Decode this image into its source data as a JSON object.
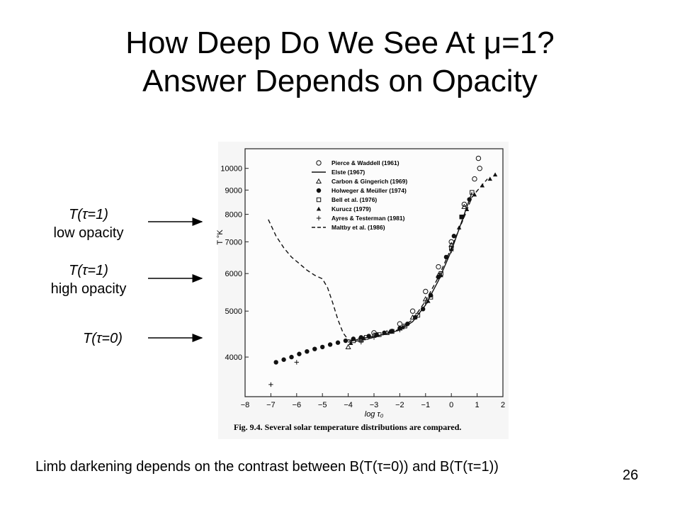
{
  "slide": {
    "title_line1": "How Deep Do We See At μ=1?",
    "title_line2": "Answer Depends on Opacity",
    "footer": "Limb darkening depends on the contrast between B(T(τ=0)) and B(T(τ=1))",
    "page_number": "26"
  },
  "labels": {
    "low_opacity_line1": "T(τ=1)",
    "low_opacity_line2": "low opacity",
    "high_opacity_line1": "T(τ=1)",
    "high_opacity_line2": "high opacity",
    "surface": "T(τ=0)"
  },
  "chart_data": {
    "type": "scatter",
    "caption": "Fig. 9.4. Several solar temperature distributions are compared.",
    "xlabel": "log τ₀",
    "ylabel": "T °K",
    "xlim": [
      -8,
      2
    ],
    "ylim": [
      3300,
      11000
    ],
    "y_scale": "log",
    "x_ticks": [
      "−8",
      "−7",
      "−6",
      "−5",
      "−4",
      "−3",
      "−2",
      "−1",
      "0",
      "1",
      "2"
    ],
    "y_ticks": [
      {
        "value": 10000,
        "label": "10000"
      },
      {
        "value": 9000,
        "label": "9000"
      },
      {
        "value": 8000,
        "label": "8000"
      },
      {
        "value": 7000,
        "label": "7000"
      },
      {
        "value": 6000,
        "label": "6000"
      },
      {
        "value": 5000,
        "label": "5000"
      },
      {
        "value": 4000,
        "label": "4000"
      }
    ],
    "legend_position": "top-right",
    "series": [
      {
        "name": "Pierce & Waddell (1961)",
        "marker": "circle-open",
        "points": [
          [
            -3.5,
            4380
          ],
          [
            -3,
            4500
          ],
          [
            -2,
            4700
          ],
          [
            -1.5,
            5000
          ],
          [
            -1,
            5500
          ],
          [
            -0.5,
            6200
          ],
          [
            0,
            7000
          ],
          [
            0.5,
            8400
          ],
          [
            0.9,
            9500
          ],
          [
            1.05,
            10500
          ],
          [
            1.1,
            10000
          ]
        ]
      },
      {
        "name": "Elste (1967)",
        "marker": "line-solid",
        "points": [
          [
            -4,
            4300
          ],
          [
            -3.5,
            4380
          ],
          [
            -3,
            4420
          ],
          [
            -2.5,
            4480
          ],
          [
            -2,
            4560
          ],
          [
            -1.5,
            4750
          ],
          [
            -1,
            5150
          ],
          [
            -0.5,
            5800
          ],
          [
            0,
            6700
          ],
          [
            0.5,
            8000
          ],
          [
            0.8,
            8900
          ]
        ]
      },
      {
        "name": "Carbon & Gingerich (1969)",
        "marker": "triangle-open",
        "points": [
          [
            -4,
            4200
          ],
          [
            -3.5,
            4350
          ],
          [
            -3,
            4450
          ],
          [
            -2.5,
            4500
          ],
          [
            -2,
            4600
          ],
          [
            -1.5,
            4850
          ],
          [
            -1,
            5300
          ],
          [
            -0.5,
            5950
          ],
          [
            0,
            6900
          ],
          [
            0.5,
            8300
          ]
        ]
      },
      {
        "name": "Holweger & Meüller (1974)",
        "marker": "circle-filled",
        "points": [
          [
            -6.8,
            3900
          ],
          [
            -6.5,
            3950
          ],
          [
            -6.2,
            4000
          ],
          [
            -5.9,
            4060
          ],
          [
            -5.6,
            4110
          ],
          [
            -5.3,
            4160
          ],
          [
            -5,
            4200
          ],
          [
            -4.7,
            4250
          ],
          [
            -4.4,
            4290
          ],
          [
            -4.1,
            4330
          ],
          [
            -3.8,
            4370
          ],
          [
            -3.5,
            4400
          ],
          [
            -3.2,
            4430
          ],
          [
            -2.9,
            4460
          ],
          [
            -2.6,
            4500
          ],
          [
            -2.3,
            4540
          ],
          [
            -2,
            4600
          ],
          [
            -1.7,
            4700
          ],
          [
            -1.4,
            4850
          ],
          [
            -1.1,
            5050
          ],
          [
            -0.8,
            5400
          ],
          [
            -0.5,
            5900
          ],
          [
            -0.2,
            6500
          ],
          [
            0.1,
            7200
          ],
          [
            0.4,
            7900
          ],
          [
            0.7,
            8600
          ]
        ]
      },
      {
        "name": "Bell et al. (1976)",
        "marker": "square-open",
        "points": [
          [
            -3.8,
            4330
          ],
          [
            -3.3,
            4400
          ],
          [
            -2.8,
            4460
          ],
          [
            -2.3,
            4530
          ],
          [
            -1.8,
            4650
          ],
          [
            -1.3,
            4900
          ],
          [
            -0.8,
            5350
          ],
          [
            -0.4,
            6000
          ],
          [
            0,
            6800
          ],
          [
            0.4,
            7900
          ],
          [
            0.8,
            8900
          ]
        ]
      },
      {
        "name": "Kurucz (1979)",
        "marker": "triangle-filled",
        "points": [
          [
            -3.9,
            4280
          ],
          [
            -3.4,
            4380
          ],
          [
            -2.9,
            4450
          ],
          [
            -2.4,
            4520
          ],
          [
            -1.9,
            4620
          ],
          [
            -1.4,
            4850
          ],
          [
            -0.9,
            5250
          ],
          [
            -0.4,
            5950
          ],
          [
            0,
            6750
          ],
          [
            0.3,
            7500
          ],
          [
            0.6,
            8200
          ],
          [
            0.9,
            8800
          ],
          [
            1.2,
            9200
          ],
          [
            1.5,
            9500
          ],
          [
            1.7,
            9700
          ]
        ]
      },
      {
        "name": "Ayres & Testerman (1981)",
        "marker": "plus",
        "points": [
          [
            -7,
            3500
          ],
          [
            -6,
            3900
          ],
          [
            -3.5,
            4300
          ],
          [
            -3,
            4400
          ],
          [
            -2,
            4560
          ],
          [
            -1,
            5200
          ],
          [
            0,
            6700
          ]
        ]
      },
      {
        "name": "Maltby et al. (1986)",
        "marker": "line-dashed",
        "points": [
          [
            -7.1,
            7800
          ],
          [
            -6.8,
            7200
          ],
          [
            -6.5,
            6800
          ],
          [
            -6.2,
            6500
          ],
          [
            -5.9,
            6300
          ],
          [
            -5.6,
            6100
          ],
          [
            -5.3,
            5950
          ],
          [
            -5,
            5850
          ],
          [
            -4.8,
            5600
          ],
          [
            -4.6,
            5200
          ],
          [
            -4.4,
            4800
          ],
          [
            -4.2,
            4500
          ],
          [
            -4,
            4350
          ],
          [
            -3.7,
            4320
          ],
          [
            -3.4,
            4350
          ],
          [
            -3,
            4400
          ],
          [
            -2.5,
            4480
          ],
          [
            -2,
            4580
          ],
          [
            -1.5,
            4800
          ],
          [
            -1,
            5250
          ],
          [
            -0.5,
            5900
          ],
          [
            0,
            6800
          ],
          [
            0.5,
            7900
          ],
          [
            0.8,
            8700
          ],
          [
            1.1,
            9100
          ],
          [
            1.4,
            9500
          ]
        ]
      }
    ]
  }
}
